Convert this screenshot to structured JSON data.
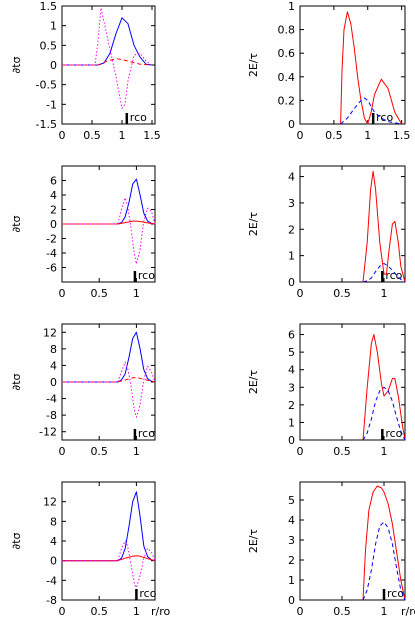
{
  "figure": {
    "colors": {
      "blue": "#0000ff",
      "red": "#ff0000",
      "red_dark": "#cc0000",
      "magenta": "#ff00ff",
      "axis": "#000000"
    }
  },
  "chart_data": [
    {
      "type": "line",
      "panel": "row1-left",
      "ylabel": "∂tσ",
      "xlabel": "",
      "xlim": [
        0,
        1.55
      ],
      "ylim": [
        -1.5,
        1.5
      ],
      "xticks": [
        "0",
        "0.5",
        "1",
        "1.5"
      ],
      "yticks": [
        "-1.5",
        "-1",
        "-0.5",
        "0",
        "0.5",
        "1",
        "1.5"
      ],
      "annotation": "rco",
      "annotation_x": 1.08,
      "series": [
        {
          "color": "blue",
          "style": "solid",
          "x": [
            0,
            0.6,
            0.7,
            0.8,
            0.9,
            1.0,
            1.1,
            1.2,
            1.3,
            1.4,
            1.5
          ],
          "y": [
            0,
            0,
            0.05,
            0.3,
            0.8,
            1.2,
            1.05,
            0.5,
            0.2,
            0.02,
            0
          ]
        },
        {
          "color": "red",
          "style": "dashed",
          "x": [
            0,
            0.6,
            0.75,
            0.9,
            1.0,
            1.1,
            1.2,
            1.3,
            1.5
          ],
          "y": [
            0,
            0,
            0.1,
            0.16,
            0.14,
            0.1,
            0.06,
            0.02,
            0
          ]
        },
        {
          "color": "magenta",
          "style": "dotted",
          "x": [
            0,
            0.55,
            0.6,
            0.65,
            0.7,
            0.8,
            0.9,
            1.0,
            1.05,
            1.1,
            1.2,
            1.3,
            1.4,
            1.5
          ],
          "y": [
            0,
            0,
            0.6,
            1.45,
            1.1,
            0.4,
            -0.3,
            -1.1,
            -1.0,
            -0.4,
            0.25,
            0.3,
            0.1,
            0
          ]
        }
      ]
    },
    {
      "type": "line",
      "panel": "row1-right",
      "ylabel": "2E/τ",
      "xlabel": "",
      "xlim": [
        0,
        1.55
      ],
      "ylim": [
        0,
        1
      ],
      "xticks": [
        "0",
        "0.5",
        "1",
        "1.5"
      ],
      "yticks": [
        "0",
        "0.2",
        "0.4",
        "0.6",
        "0.8",
        "1"
      ],
      "annotation": "rco",
      "annotation_x": 1.08,
      "series": [
        {
          "color": "red",
          "style": "solid",
          "x": [
            0.6,
            0.62,
            0.65,
            0.7,
            0.75,
            0.8,
            0.85,
            0.9,
            0.95,
            1.0,
            1.05,
            1.1,
            1.2,
            1.3,
            1.4,
            1.5
          ],
          "y": [
            0,
            0.45,
            0.8,
            0.95,
            0.85,
            0.65,
            0.4,
            0.2,
            0.05,
            0.0,
            0.1,
            0.25,
            0.38,
            0.3,
            0.1,
            0
          ]
        },
        {
          "color": "blue",
          "style": "dashed",
          "x": [
            0.6,
            0.7,
            0.8,
            0.9,
            0.95,
            1.0,
            1.05,
            1.1,
            1.2,
            1.3,
            1.4,
            1.5
          ],
          "y": [
            0,
            0.05,
            0.13,
            0.2,
            0.22,
            0.2,
            0.15,
            0.1,
            0.05,
            0.02,
            0.01,
            0
          ]
        }
      ]
    },
    {
      "type": "line",
      "panel": "row2-left",
      "ylabel": "∂tσ",
      "xlabel": "",
      "xlim": [
        0,
        1.25
      ],
      "ylim": [
        -8,
        8
      ],
      "xticks": [
        "0",
        "0.5",
        "1"
      ],
      "yticks": [
        "-6",
        "-4",
        "-2",
        "0",
        "2",
        "4",
        "6"
      ],
      "annotation": "rco",
      "annotation_x": 0.98,
      "series": [
        {
          "color": "blue",
          "style": "solid",
          "x": [
            0,
            0.75,
            0.8,
            0.85,
            0.9,
            0.95,
            1.0,
            1.05,
            1.1,
            1.15,
            1.2,
            1.25
          ],
          "y": [
            0,
            0,
            0.2,
            1.0,
            3.0,
            5.5,
            6.2,
            4.0,
            1.5,
            0.4,
            0.1,
            0
          ]
        },
        {
          "color": "red",
          "style": "solid",
          "x": [
            0,
            0.75,
            0.85,
            0.95,
            1.0,
            1.05,
            1.15,
            1.25
          ],
          "y": [
            0,
            0,
            0.2,
            0.4,
            0.4,
            0.35,
            0.15,
            0
          ]
        },
        {
          "color": "magenta",
          "style": "dotted",
          "x": [
            0,
            0.75,
            0.8,
            0.85,
            0.88,
            0.92,
            0.97,
            1.0,
            1.05,
            1.1,
            1.15,
            1.2,
            1.25
          ],
          "y": [
            0,
            0,
            2.0,
            3.6,
            2.5,
            0,
            -4.0,
            -5.5,
            -3.5,
            0.5,
            2.2,
            1.8,
            0
          ]
        }
      ]
    },
    {
      "type": "line",
      "panel": "row2-right",
      "ylabel": "2E/τ",
      "xlabel": "",
      "xlim": [
        0,
        1.25
      ],
      "ylim": [
        0,
        4.4
      ],
      "xticks": [
        "0",
        "0.5",
        "1"
      ],
      "yticks": [
        "0",
        "1",
        "2",
        "3",
        "4"
      ],
      "annotation": "rco",
      "annotation_x": 0.98,
      "series": [
        {
          "color": "red",
          "style": "solid",
          "x": [
            0.75,
            0.8,
            0.84,
            0.87,
            0.9,
            0.95,
            1.0,
            1.03,
            1.06,
            1.1,
            1.13,
            1.17,
            1.2,
            1.25
          ],
          "y": [
            0,
            1.5,
            3.5,
            4.2,
            3.5,
            1.5,
            0.3,
            0.3,
            1.2,
            2.2,
            2.3,
            1.5,
            0.6,
            0
          ]
        },
        {
          "color": "blue",
          "style": "dashed",
          "x": [
            0.75,
            0.8,
            0.85,
            0.9,
            0.95,
            1.0,
            1.05,
            1.1,
            1.15,
            1.2,
            1.25
          ],
          "y": [
            0,
            0.05,
            0.15,
            0.4,
            0.6,
            0.7,
            0.6,
            0.45,
            0.25,
            0.1,
            0
          ]
        }
      ]
    },
    {
      "type": "line",
      "panel": "row3-left",
      "ylabel": "∂tσ",
      "xlabel": "",
      "xlim": [
        0,
        1.25
      ],
      "ylim": [
        -14,
        14
      ],
      "xticks": [
        "0",
        "0.5",
        "1"
      ],
      "yticks": [
        "-12",
        "-8",
        "-4",
        "0",
        "4",
        "8",
        "12"
      ],
      "annotation": "rco",
      "annotation_x": 0.98,
      "series": [
        {
          "color": "blue",
          "style": "solid",
          "x": [
            0,
            0.75,
            0.8,
            0.85,
            0.9,
            0.95,
            1.0,
            1.05,
            1.1,
            1.15,
            1.2,
            1.25
          ],
          "y": [
            0,
            0,
            0.5,
            2.0,
            6.0,
            10.5,
            12.0,
            8.0,
            3.0,
            0.8,
            0.2,
            0
          ]
        },
        {
          "color": "red",
          "style": "dashed",
          "x": [
            0,
            0.75,
            0.85,
            0.95,
            1.0,
            1.05,
            1.15,
            1.25
          ],
          "y": [
            0,
            0,
            0.5,
            1.0,
            1.1,
            0.9,
            0.4,
            0
          ]
        },
        {
          "color": "magenta",
          "style": "dotted",
          "x": [
            0,
            0.75,
            0.8,
            0.85,
            0.88,
            0.92,
            0.97,
            1.0,
            1.05,
            1.1,
            1.15,
            1.2,
            1.25
          ],
          "y": [
            0,
            0,
            2.5,
            4.8,
            3.5,
            0,
            -6.5,
            -8.5,
            -5.5,
            0.5,
            3.8,
            2.5,
            0
          ]
        }
      ]
    },
    {
      "type": "line",
      "panel": "row3-right",
      "ylabel": "2E/τ",
      "xlabel": "",
      "xlim": [
        0,
        1.25
      ],
      "ylim": [
        0,
        6.6
      ],
      "xticks": [
        "0",
        "0.5",
        "1"
      ],
      "yticks": [
        "0",
        "1",
        "2",
        "3",
        "4",
        "5",
        "6"
      ],
      "annotation": "rco",
      "annotation_x": 0.98,
      "series": [
        {
          "color": "red",
          "style": "solid",
          "x": [
            0.75,
            0.8,
            0.85,
            0.88,
            0.92,
            0.97,
            1.0,
            1.05,
            1.1,
            1.13,
            1.17,
            1.22,
            1.25
          ],
          "y": [
            0,
            3.0,
            5.5,
            6.0,
            5.0,
            3.2,
            2.5,
            2.8,
            3.5,
            3.5,
            2.5,
            0.8,
            0
          ]
        },
        {
          "color": "blue",
          "style": "dashed",
          "x": [
            0.75,
            0.8,
            0.85,
            0.9,
            0.95,
            1.0,
            1.05,
            1.1,
            1.15,
            1.2,
            1.25
          ],
          "y": [
            0,
            0.4,
            1.2,
            2.2,
            2.8,
            3.0,
            2.8,
            2.2,
            1.3,
            0.5,
            0
          ]
        }
      ]
    },
    {
      "type": "line",
      "panel": "row4-left",
      "ylabel": "∂tσ",
      "xlabel": "r/ro",
      "xlim": [
        0,
        1.25
      ],
      "ylim": [
        -8,
        16
      ],
      "xticks": [
        "0",
        "0.5",
        "1"
      ],
      "yticks": [
        "-8",
        "-4",
        "0",
        "4",
        "8",
        "12"
      ],
      "annotation": "rco",
      "annotation_x": 1.0,
      "series": [
        {
          "color": "blue",
          "style": "solid",
          "x": [
            0,
            0.75,
            0.8,
            0.85,
            0.9,
            0.95,
            1.0,
            1.05,
            1.1,
            1.15,
            1.2,
            1.25
          ],
          "y": [
            0,
            0,
            0.5,
            2.5,
            7.0,
            12.0,
            14.0,
            9.0,
            3.0,
            0.8,
            0.2,
            0
          ]
        },
        {
          "color": "red",
          "style": "solid",
          "x": [
            0,
            0.75,
            0.85,
            0.95,
            1.0,
            1.05,
            1.15,
            1.25
          ],
          "y": [
            0,
            0,
            0.5,
            0.9,
            1.0,
            0.9,
            0.4,
            0
          ]
        },
        {
          "color": "magenta",
          "style": "dotted",
          "x": [
            0,
            0.75,
            0.8,
            0.85,
            0.88,
            0.92,
            0.97,
            1.0,
            1.05,
            1.1,
            1.15,
            1.2,
            1.25
          ],
          "y": [
            0,
            0,
            2.5,
            4.0,
            3.0,
            0,
            -4.5,
            -5.5,
            -3.0,
            0.5,
            2.5,
            1.8,
            0
          ]
        }
      ]
    },
    {
      "type": "line",
      "panel": "row4-right",
      "ylabel": "2E/τ",
      "xlabel": "r/ro",
      "xlim": [
        0,
        1.25
      ],
      "ylim": [
        0,
        5.9
      ],
      "xticks": [
        "0",
        "0.5",
        "1"
      ],
      "yticks": [
        "0",
        "1",
        "2",
        "3",
        "4",
        "5"
      ],
      "annotation": "rco",
      "annotation_x": 1.0,
      "series": [
        {
          "color": "red",
          "style": "solid",
          "x": [
            0.75,
            0.78,
            0.82,
            0.87,
            0.92,
            0.97,
            1.0,
            1.05,
            1.1,
            1.15,
            1.2,
            1.25
          ],
          "y": [
            0,
            2.5,
            4.5,
            5.4,
            5.7,
            5.6,
            5.4,
            4.8,
            3.8,
            2.4,
            1.0,
            0
          ]
        },
        {
          "color": "blue",
          "style": "dashed",
          "x": [
            0.75,
            0.8,
            0.85,
            0.9,
            0.95,
            1.0,
            1.05,
            1.1,
            1.15,
            1.2,
            1.25
          ],
          "y": [
            0,
            0.5,
            1.5,
            2.8,
            3.7,
            3.9,
            3.6,
            2.8,
            1.6,
            0.5,
            0
          ]
        }
      ]
    }
  ]
}
